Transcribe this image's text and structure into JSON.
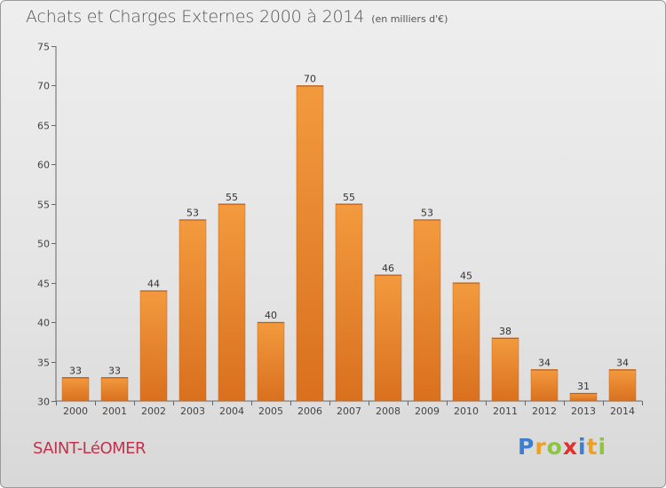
{
  "header": {
    "title": "Achats et Charges Externes 2000 à 2014",
    "subtitle": "(en milliers d'€)"
  },
  "footer": {
    "commune": "SAINT-LéOMER",
    "logo": "Proxiti"
  },
  "colors": {
    "bar": "#f39a3e",
    "bar_dark": "#d9701f",
    "commune": "#c0334d",
    "logo_letters": [
      "#3a7fd0",
      "#f0a020",
      "#8cc63e",
      "#e2312d",
      "#3a7fd0",
      "#f0a020",
      "#8cc63e"
    ]
  },
  "chart_data": {
    "type": "bar",
    "title": "Achats et Charges Externes 2000 à 2014",
    "subtitle": "(en milliers d'€)",
    "categories": [
      "2000",
      "2001",
      "2002",
      "2003",
      "2004",
      "2005",
      "2006",
      "2007",
      "2008",
      "2009",
      "2010",
      "2011",
      "2012",
      "2013",
      "2014"
    ],
    "values": [
      33,
      33,
      44,
      53,
      55,
      40,
      70,
      55,
      46,
      53,
      45,
      38,
      34,
      31,
      34
    ],
    "ylim": [
      30,
      75
    ],
    "yticks": [
      30,
      35,
      40,
      45,
      50,
      55,
      60,
      65,
      70,
      75
    ],
    "grid": false,
    "xlabel": "",
    "ylabel": ""
  }
}
